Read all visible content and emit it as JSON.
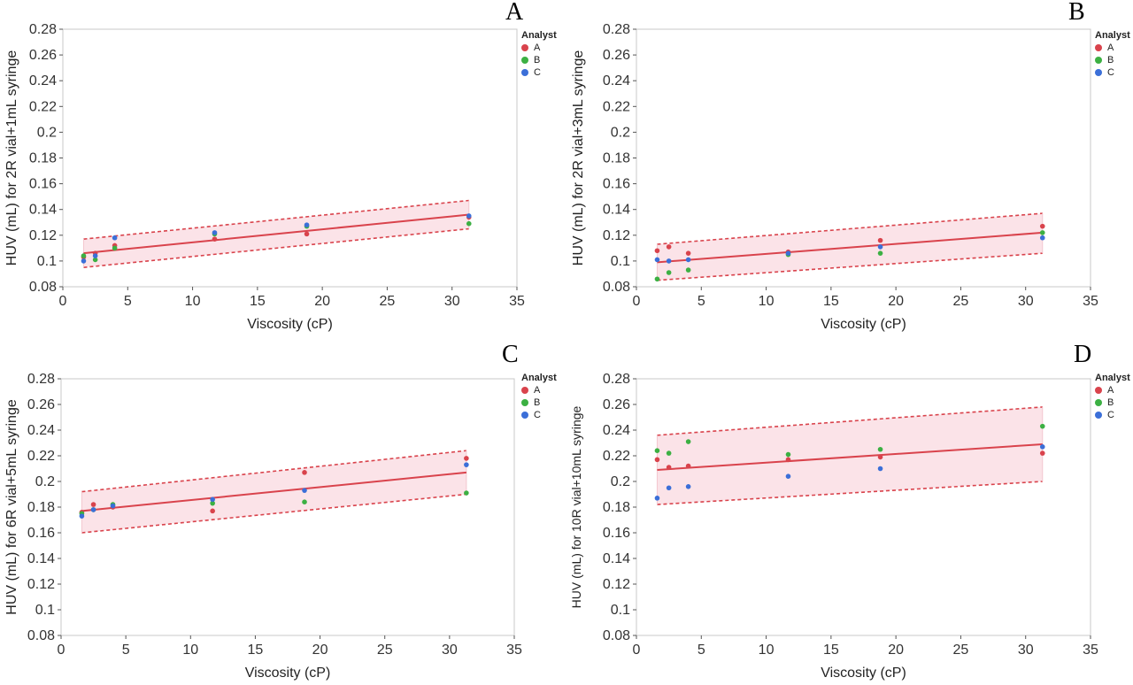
{
  "legend": {
    "title": "Analyst",
    "items": [
      {
        "label": "A",
        "color": "#d9434c"
      },
      {
        "label": "B",
        "color": "#3cb043"
      },
      {
        "label": "C",
        "color": "#3b6fd8"
      }
    ]
  },
  "fit_color": "#d9434c",
  "band_color": "#fbe3e8",
  "chart_data": [
    {
      "panel": "A",
      "type": "scatter",
      "xlabel": "Viscosity (cP)",
      "ylabel": "HUV (mL) for 2R vial+1mL syringe",
      "xlim": [
        0,
        35
      ],
      "ylim": [
        0.08,
        0.28
      ],
      "xticks": [
        0,
        5,
        10,
        15,
        20,
        25,
        30,
        35
      ],
      "yticks": [
        0.08,
        0.1,
        0.12,
        0.14,
        0.16,
        0.18,
        0.2,
        0.22,
        0.24,
        0.26,
        0.28
      ],
      "ytick_labels": [
        "0.08",
        "0.1",
        "0.12",
        "0.14",
        "0.16",
        "0.18",
        "0.2",
        "0.22",
        "0.24",
        "0.26",
        "0.28"
      ],
      "series": [
        {
          "name": "A",
          "points": [
            [
              1.6,
              0.103
            ],
            [
              2.5,
              0.106
            ],
            [
              4,
              0.112
            ],
            [
              11.7,
              0.117
            ],
            [
              18.8,
              0.121
            ],
            [
              31.3,
              0.134
            ]
          ]
        },
        {
          "name": "B",
          "points": [
            [
              1.6,
              0.104
            ],
            [
              2.5,
              0.101
            ],
            [
              4,
              0.11
            ],
            [
              11.7,
              0.121
            ],
            [
              18.8,
              0.127
            ],
            [
              31.3,
              0.129
            ]
          ]
        },
        {
          "name": "C",
          "points": [
            [
              1.6,
              0.1
            ],
            [
              2.5,
              0.104
            ],
            [
              4,
              0.118
            ],
            [
              11.7,
              0.122
            ],
            [
              18.8,
              0.128
            ],
            [
              31.3,
              0.135
            ]
          ]
        }
      ],
      "fit": {
        "x": [
          1.6,
          31.3
        ],
        "y": [
          0.106,
          0.136
        ]
      },
      "band_upper": {
        "x": [
          1.6,
          31.3
        ],
        "y": [
          0.117,
          0.147
        ]
      },
      "band_lower": {
        "x": [
          1.6,
          31.3
        ],
        "y": [
          0.095,
          0.125
        ]
      }
    },
    {
      "panel": "B",
      "type": "scatter",
      "xlabel": "Viscosity (cP)",
      "ylabel": "HUV (mL) for 2R vial+3mL syringe",
      "xlim": [
        0,
        35
      ],
      "ylim": [
        0.08,
        0.28
      ],
      "xticks": [
        0,
        5,
        10,
        15,
        20,
        25,
        30,
        35
      ],
      "yticks": [
        0.08,
        0.1,
        0.12,
        0.14,
        0.16,
        0.18,
        0.2,
        0.22,
        0.24,
        0.26,
        0.28
      ],
      "ytick_labels": [
        "0.08",
        "0.1",
        "0.12",
        "0.14",
        "0.16",
        "0.18",
        "0.2",
        "0.22",
        "0.24",
        "0.26",
        "0.28"
      ],
      "series": [
        {
          "name": "A",
          "points": [
            [
              1.6,
              0.108
            ],
            [
              2.5,
              0.111
            ],
            [
              4,
              0.106
            ],
            [
              11.7,
              0.107
            ],
            [
              18.8,
              0.116
            ],
            [
              31.3,
              0.127
            ]
          ]
        },
        {
          "name": "B",
          "points": [
            [
              1.6,
              0.086
            ],
            [
              2.5,
              0.091
            ],
            [
              4,
              0.093
            ],
            [
              11.7,
              0.105
            ],
            [
              18.8,
              0.106
            ],
            [
              31.3,
              0.122
            ]
          ]
        },
        {
          "name": "C",
          "points": [
            [
              1.6,
              0.101
            ],
            [
              2.5,
              0.1
            ],
            [
              4,
              0.101
            ],
            [
              11.7,
              0.106
            ],
            [
              18.8,
              0.111
            ],
            [
              31.3,
              0.118
            ]
          ]
        }
      ],
      "fit": {
        "x": [
          1.6,
          31.3
        ],
        "y": [
          0.099,
          0.122
        ]
      },
      "band_upper": {
        "x": [
          1.6,
          31.3
        ],
        "y": [
          0.113,
          0.137
        ]
      },
      "band_lower": {
        "x": [
          1.6,
          31.3
        ],
        "y": [
          0.085,
          0.106
        ]
      }
    },
    {
      "panel": "C",
      "type": "scatter",
      "xlabel": "Viscosity (cP)",
      "ylabel": "HUV (mL) for 6R vial+5mL syringe",
      "xlim": [
        0,
        35
      ],
      "ylim": [
        0.08,
        0.28
      ],
      "xticks": [
        0,
        5,
        10,
        15,
        20,
        25,
        30,
        35
      ],
      "yticks": [
        0.08,
        0.1,
        0.12,
        0.14,
        0.16,
        0.18,
        0.2,
        0.22,
        0.24,
        0.26,
        0.28
      ],
      "ytick_labels": [
        "0.08",
        "0.1",
        "0.12",
        "0.14",
        "0.16",
        "0.18",
        "0.2",
        "0.22",
        "0.24",
        "0.26",
        "0.28"
      ],
      "series": [
        {
          "name": "A",
          "points": [
            [
              1.6,
              0.176
            ],
            [
              2.5,
              0.182
            ],
            [
              4,
              0.18
            ],
            [
              11.7,
              0.177
            ],
            [
              18.8,
              0.207
            ],
            [
              31.3,
              0.218
            ]
          ]
        },
        {
          "name": "B",
          "points": [
            [
              1.6,
              0.175
            ],
            [
              2.5,
              0.178
            ],
            [
              4,
              0.182
            ],
            [
              11.7,
              0.183
            ],
            [
              18.8,
              0.184
            ],
            [
              31.3,
              0.191
            ]
          ]
        },
        {
          "name": "C",
          "points": [
            [
              1.6,
              0.173
            ],
            [
              2.5,
              0.178
            ],
            [
              4,
              0.181
            ],
            [
              11.7,
              0.186
            ],
            [
              18.8,
              0.193
            ],
            [
              31.3,
              0.213
            ]
          ]
        }
      ],
      "fit": {
        "x": [
          1.6,
          31.3
        ],
        "y": [
          0.177,
          0.207
        ]
      },
      "band_upper": {
        "x": [
          1.6,
          31.3
        ],
        "y": [
          0.192,
          0.224
        ]
      },
      "band_lower": {
        "x": [
          1.6,
          31.3
        ],
        "y": [
          0.16,
          0.19
        ]
      }
    },
    {
      "panel": "D",
      "type": "scatter",
      "xlabel": "Viscosity (cP)",
      "ylabel": "HUV (mL) for 10R vial+10mL syringe",
      "xlim": [
        0,
        35
      ],
      "ylim": [
        0.08,
        0.28
      ],
      "xticks": [
        0,
        5,
        10,
        15,
        20,
        25,
        30,
        35
      ],
      "yticks": [
        0.08,
        0.1,
        0.12,
        0.14,
        0.16,
        0.18,
        0.2,
        0.22,
        0.24,
        0.26,
        0.28
      ],
      "ytick_labels": [
        "0.08",
        "0.1",
        "0.12",
        "0.14",
        "0.16",
        "0.18",
        "0.2",
        "0.22",
        "0.24",
        "0.26",
        "0.28"
      ],
      "series": [
        {
          "name": "A",
          "points": [
            [
              1.6,
              0.217
            ],
            [
              2.5,
              0.211
            ],
            [
              4,
              0.212
            ],
            [
              11.7,
              0.217
            ],
            [
              18.8,
              0.219
            ],
            [
              31.3,
              0.222
            ]
          ]
        },
        {
          "name": "B",
          "points": [
            [
              1.6,
              0.224
            ],
            [
              2.5,
              0.222
            ],
            [
              4,
              0.231
            ],
            [
              11.7,
              0.221
            ],
            [
              18.8,
              0.225
            ],
            [
              31.3,
              0.243
            ]
          ]
        },
        {
          "name": "C",
          "points": [
            [
              1.6,
              0.187
            ],
            [
              2.5,
              0.195
            ],
            [
              4,
              0.196
            ],
            [
              11.7,
              0.204
            ],
            [
              18.8,
              0.21
            ],
            [
              31.3,
              0.227
            ]
          ]
        }
      ],
      "fit": {
        "x": [
          1.6,
          31.3
        ],
        "y": [
          0.209,
          0.229
        ]
      },
      "band_upper": {
        "x": [
          1.6,
          31.3
        ],
        "y": [
          0.236,
          0.258
        ]
      },
      "band_lower": {
        "x": [
          1.6,
          31.3
        ],
        "y": [
          0.182,
          0.2
        ]
      }
    }
  ]
}
